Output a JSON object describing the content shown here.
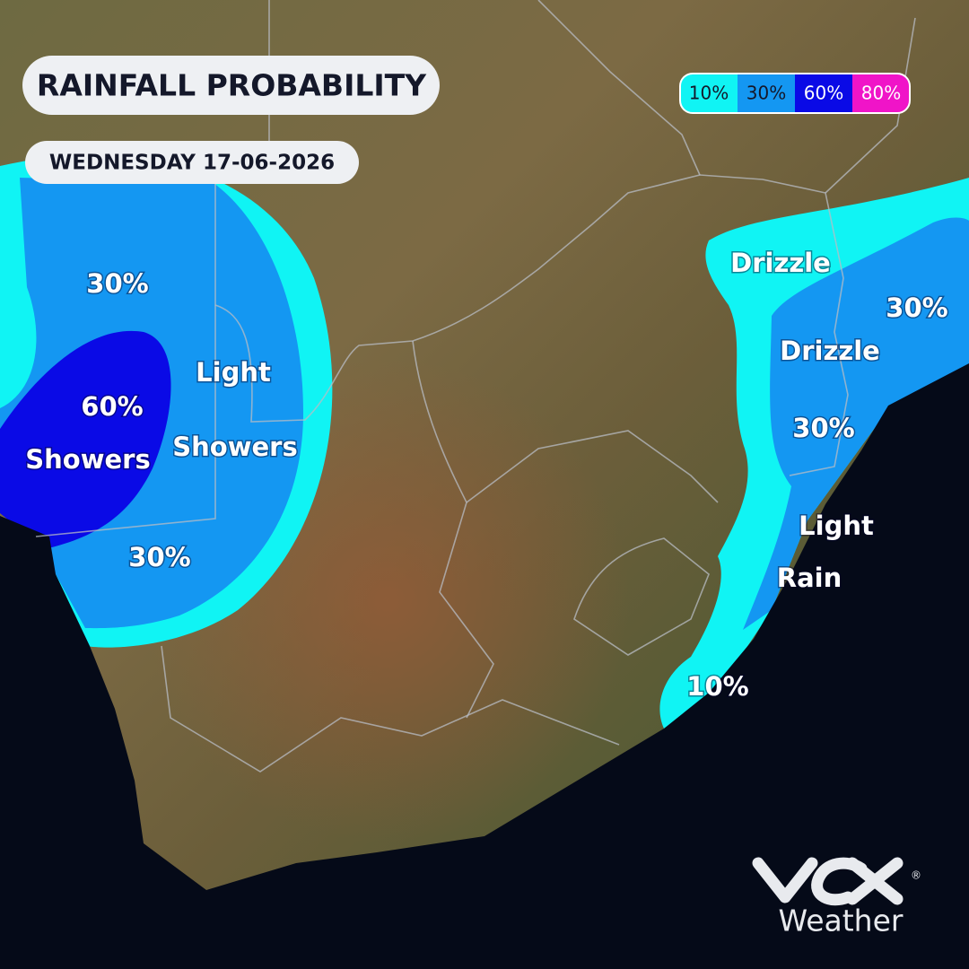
{
  "header": {
    "title": "RAINFALL PROBABILITY",
    "date": "WEDNESDAY 17-06-2026"
  },
  "legend": [
    {
      "label": "10%",
      "color": "#10f4f4"
    },
    {
      "label": "30%",
      "color": "#1497f2"
    },
    {
      "label": "60%",
      "color": "#0a0ae6"
    },
    {
      "label": "80%",
      "color": "#f014c8"
    }
  ],
  "map": {
    "labels": [
      "30%",
      "60%",
      "Showers",
      "Light",
      "Showers",
      "30%",
      "Drizzle",
      "30%",
      "Drizzle",
      "30%",
      "Light",
      "Rain",
      "10%"
    ]
  },
  "logo": {
    "brand": "Weather",
    "mark": "®"
  }
}
